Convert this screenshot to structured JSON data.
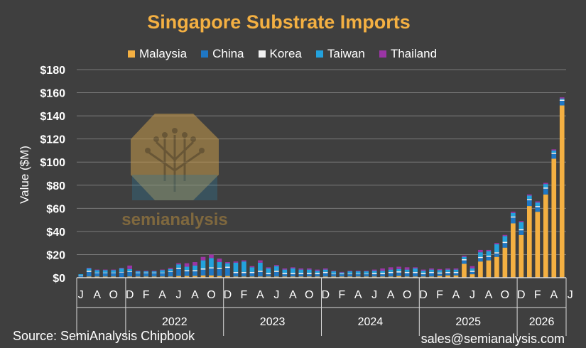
{
  "header": {
    "title": "Singapore Substrate Imports"
  },
  "footer": {
    "source": "Source: SemiAnalysis Chipbook",
    "contact": "sales@semianalysis.com"
  },
  "watermark": {
    "text": "semianalysis",
    "icon": "chip-tree-logo"
  },
  "chart_data": {
    "type": "bar",
    "stacked": true,
    "ylabel": "Value ($M)",
    "ylim": [
      0,
      180
    ],
    "yticks": [
      "$0",
      "$20",
      "$40",
      "$60",
      "$80",
      "$100",
      "$120",
      "$140",
      "$160",
      "$180"
    ],
    "grid": true,
    "legend_position": "top",
    "categories": [
      "2021-07",
      "2021-08",
      "2021-09",
      "2021-10",
      "2021-11",
      "2021-12",
      "2022-01",
      "2022-02",
      "2022-03",
      "2022-04",
      "2022-05",
      "2022-06",
      "2022-07",
      "2022-08",
      "2022-09",
      "2022-10",
      "2022-11",
      "2022-12",
      "2023-01",
      "2023-02",
      "2023-03",
      "2023-04",
      "2023-05",
      "2023-06",
      "2023-07",
      "2023-08",
      "2023-09",
      "2023-10",
      "2023-11",
      "2023-12",
      "2024-01",
      "2024-02",
      "2024-03",
      "2024-04",
      "2024-05",
      "2024-06",
      "2024-07",
      "2024-08",
      "2024-09",
      "2024-10",
      "2024-11",
      "2024-12",
      "2025-01",
      "2025-02",
      "2025-03",
      "2025-04",
      "2025-05",
      "2025-06",
      "2025-07",
      "2025-08",
      "2025-09",
      "2025-10",
      "2025-11",
      "2025-12",
      "2026-01",
      "2026-02",
      "2026-03",
      "2026-04",
      "2026-05",
      "2026-06"
    ],
    "month_labels": [
      "J",
      "",
      "A",
      "",
      "O",
      "",
      "D",
      "",
      "F",
      "",
      "A",
      "",
      "J",
      "",
      "A",
      "",
      "O",
      "",
      "D",
      "",
      "F",
      "",
      "A",
      "",
      "J",
      "",
      "A",
      "",
      "O",
      "",
      "D",
      "",
      "F",
      "",
      "A",
      "",
      "J",
      "",
      "A",
      "",
      "O",
      "",
      "D",
      "",
      "F",
      "",
      "A",
      "",
      "J",
      "",
      "A",
      "",
      "O",
      "",
      "D",
      "",
      "F",
      "",
      "A",
      "",
      "J"
    ],
    "year_groups": [
      {
        "label": "",
        "start": 0,
        "end": 5
      },
      {
        "label": "2022",
        "start": 6,
        "end": 17
      },
      {
        "label": "2023",
        "start": 18,
        "end": 29
      },
      {
        "label": "2024",
        "start": 30,
        "end": 41
      },
      {
        "label": "2025",
        "start": 42,
        "end": 53
      },
      {
        "label": "2026",
        "start": 54,
        "end": 59
      }
    ],
    "series": [
      {
        "name": "Malaysia",
        "color": "#f4b042",
        "values": [
          0.5,
          1,
          1,
          1,
          1,
          0.5,
          1,
          1,
          1,
          1,
          1,
          1,
          1.5,
          1.5,
          1.5,
          2,
          2,
          1.5,
          1.5,
          1,
          1,
          1,
          1,
          1,
          1,
          1,
          1,
          1,
          1,
          1,
          1,
          1,
          1,
          1,
          1,
          1,
          1,
          1,
          1,
          1.5,
          1,
          1,
          1,
          1,
          1.5,
          2,
          2,
          12,
          3,
          14,
          15,
          18,
          26,
          47,
          37,
          62,
          57,
          72,
          103,
          149
        ]
      },
      {
        "name": "China",
        "color": "#1f77c4",
        "values": [
          1,
          4,
          3,
          3,
          3,
          4,
          4,
          3,
          3,
          3,
          3,
          4,
          6,
          4,
          4,
          5,
          6,
          6,
          7,
          3,
          3,
          3,
          4,
          2,
          4,
          2,
          2,
          2,
          2,
          2,
          3,
          2,
          2,
          2,
          2,
          2,
          2,
          2,
          3,
          3,
          3,
          3,
          2,
          3,
          2,
          2,
          2,
          3,
          2,
          3,
          3,
          3,
          4,
          5,
          4,
          5,
          4,
          5,
          4,
          4
        ]
      },
      {
        "name": "Korea",
        "color": "#f2f2f2",
        "values": [
          0.5,
          1,
          0.5,
          0.5,
          0.5,
          0.5,
          0.5,
          0.5,
          0.5,
          0.5,
          0.5,
          0.5,
          1,
          1,
          1,
          1,
          1,
          1,
          1,
          1,
          1,
          1,
          1,
          1,
          1,
          1,
          1,
          1,
          1,
          1,
          1,
          0.5,
          0.5,
          0.5,
          0.5,
          0.5,
          1,
          1,
          1,
          1,
          1,
          1,
          1,
          1,
          1,
          1,
          1,
          1,
          1,
          1,
          1,
          1,
          1,
          1,
          1,
          1,
          1,
          1,
          1,
          1
        ]
      },
      {
        "name": "Taiwan",
        "color": "#23a2dd",
        "values": [
          1,
          2,
          2,
          2,
          2,
          3,
          2,
          1,
          1,
          1,
          2,
          2,
          3,
          3,
          4,
          7,
          8,
          5,
          3,
          8,
          9,
          4,
          7,
          4,
          4,
          3,
          4,
          3,
          3,
          2,
          2,
          2,
          1,
          2,
          2,
          2,
          2,
          2,
          2,
          2,
          2,
          3,
          2,
          2,
          2,
          2,
          2,
          2,
          2,
          4,
          4,
          7,
          5,
          3,
          6,
          3,
          3,
          3,
          2,
          1
        ]
      },
      {
        "name": "Thailand",
        "color": "#9b35a5",
        "values": [
          0,
          0.5,
          0.5,
          0.5,
          0.5,
          0.5,
          3,
          0.5,
          0.5,
          0.5,
          0.5,
          1,
          1,
          3,
          3,
          3,
          3,
          3,
          1,
          1,
          1,
          1,
          2,
          1,
          1,
          1,
          1,
          1,
          1,
          1,
          1,
          0.5,
          0.5,
          0.5,
          0.5,
          0.5,
          1,
          2,
          2,
          2,
          2,
          1,
          1,
          1,
          1,
          1,
          1,
          1,
          2,
          2,
          1,
          1,
          1,
          1,
          1,
          1,
          1,
          1,
          1,
          1
        ]
      }
    ]
  }
}
